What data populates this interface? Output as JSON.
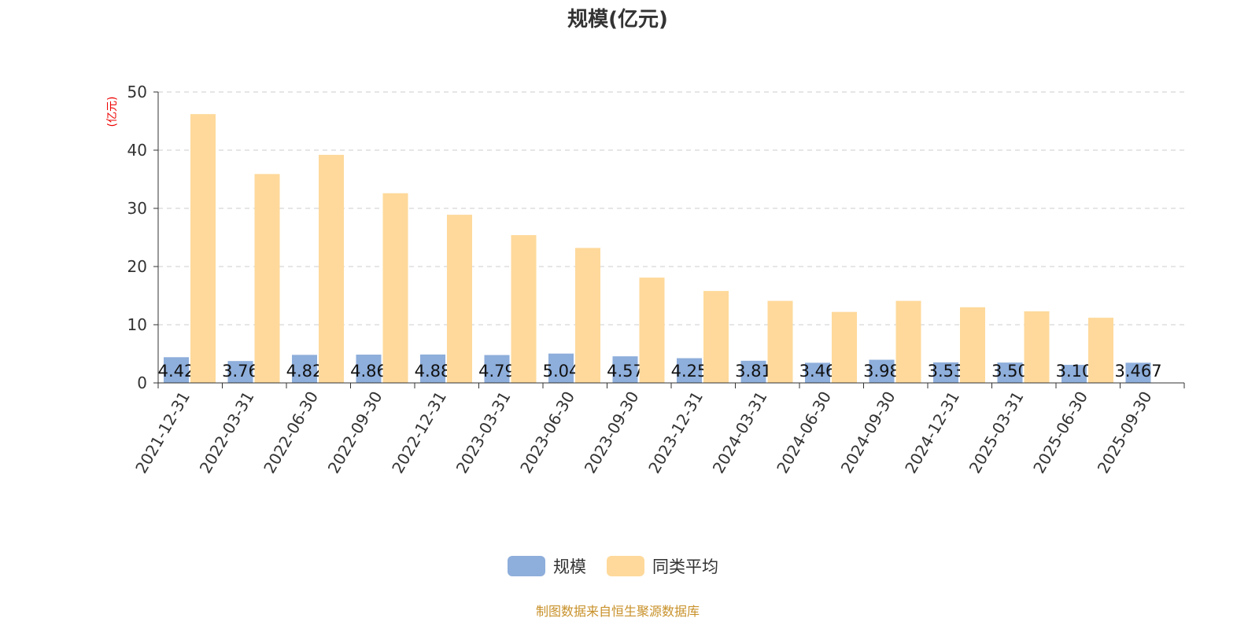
{
  "chart_data": {
    "type": "bar",
    "title": "规模(亿元)",
    "ylabel": "(亿元)",
    "ylim": [
      0,
      50
    ],
    "yticks": [
      0,
      10,
      20,
      30,
      40,
      50
    ],
    "grid": true,
    "legend_position": "bottom",
    "categories": [
      "2021-12-31",
      "2022-03-31",
      "2022-06-30",
      "2022-09-30",
      "2022-12-31",
      "2023-03-31",
      "2023-06-30",
      "2023-09-30",
      "2023-12-31",
      "2024-03-31",
      "2024-06-30",
      "2024-09-30",
      "2024-12-31",
      "2025-03-31",
      "2025-06-30",
      "2025-09-30"
    ],
    "series": [
      {
        "name": "规模",
        "color": "#8eaedb",
        "values": [
          4.42,
          3.76,
          4.82,
          4.86,
          4.88,
          4.79,
          5.04,
          4.57,
          4.25,
          3.81,
          3.46,
          3.98,
          3.53,
          3.5,
          3.1,
          3.467
        ],
        "labels": [
          "4.42",
          "3.76",
          "4.82",
          "4.86",
          "4.88",
          "4.79",
          "5.04",
          "4.57",
          "4.25",
          "3.81",
          "3.46",
          "3.98",
          "3.53",
          "3.50",
          "3.10",
          "3.467"
        ]
      },
      {
        "name": "同类平均",
        "color": "#fed99b",
        "values": [
          46.2,
          35.9,
          39.2,
          32.6,
          28.9,
          25.4,
          23.2,
          18.1,
          15.8,
          14.1,
          12.2,
          14.1,
          13.0,
          12.3,
          11.2,
          null
        ]
      }
    ]
  },
  "source": "制图数据来自恒生聚源数据库"
}
